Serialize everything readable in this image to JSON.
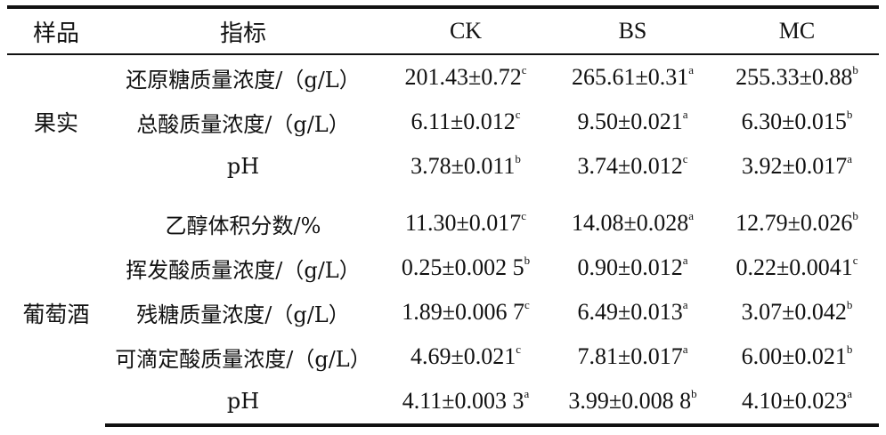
{
  "table": {
    "headers": [
      "样品",
      "指标",
      "CK",
      "BS",
      "MC"
    ],
    "groups": [
      {
        "sample": "果实",
        "rows": [
          {
            "metric": "还原糖质量浓度/（g/L）",
            "values": [
              {
                "value": "201.43±0.72",
                "sig": "c"
              },
              {
                "value": "265.61±0.31",
                "sig": "a"
              },
              {
                "value": "255.33±0.88",
                "sig": "b"
              }
            ]
          },
          {
            "metric": "总酸质量浓度/（g/L）",
            "values": [
              {
                "value": "6.11±0.012",
                "sig": "c"
              },
              {
                "value": "9.50±0.021",
                "sig": "a"
              },
              {
                "value": "6.30±0.015",
                "sig": "b"
              }
            ]
          },
          {
            "metric": "pH",
            "values": [
              {
                "value": "3.78±0.011",
                "sig": "b"
              },
              {
                "value": "3.74±0.012",
                "sig": "c"
              },
              {
                "value": "3.92±0.017",
                "sig": "a"
              }
            ]
          }
        ]
      },
      {
        "sample": "葡萄酒",
        "rows": [
          {
            "metric": "乙醇体积分数/%",
            "values": [
              {
                "value": "11.30±0.017",
                "sig": "c"
              },
              {
                "value": "14.08±0.028",
                "sig": "a"
              },
              {
                "value": "12.79±0.026",
                "sig": "b"
              }
            ]
          },
          {
            "metric": "挥发酸质量浓度/（g/L）",
            "values": [
              {
                "value": "0.25±0.002 5",
                "sig": "b"
              },
              {
                "value": "0.90±0.012",
                "sig": "a"
              },
              {
                "value": "0.22±0.0041",
                "sig": "c"
              }
            ]
          },
          {
            "metric": "残糖质量浓度/（g/L）",
            "values": [
              {
                "value": "1.89±0.006 7",
                "sig": "c"
              },
              {
                "value": "6.49±0.013",
                "sig": "a"
              },
              {
                "value": "3.07±0.042",
                "sig": "b"
              }
            ]
          },
          {
            "metric": "可滴定酸质量浓度/（g/L）",
            "values": [
              {
                "value": "4.69±0.021",
                "sig": "c"
              },
              {
                "value": "7.81±0.017",
                "sig": "a"
              },
              {
                "value": "6.00±0.021",
                "sig": "b"
              }
            ]
          },
          {
            "metric": "pH",
            "values": [
              {
                "value": "4.11±0.003 3",
                "sig": "a"
              },
              {
                "value": "3.99±0.008 8",
                "sig": "b"
              },
              {
                "value": "4.10±0.023",
                "sig": "a"
              }
            ]
          }
        ]
      }
    ]
  }
}
